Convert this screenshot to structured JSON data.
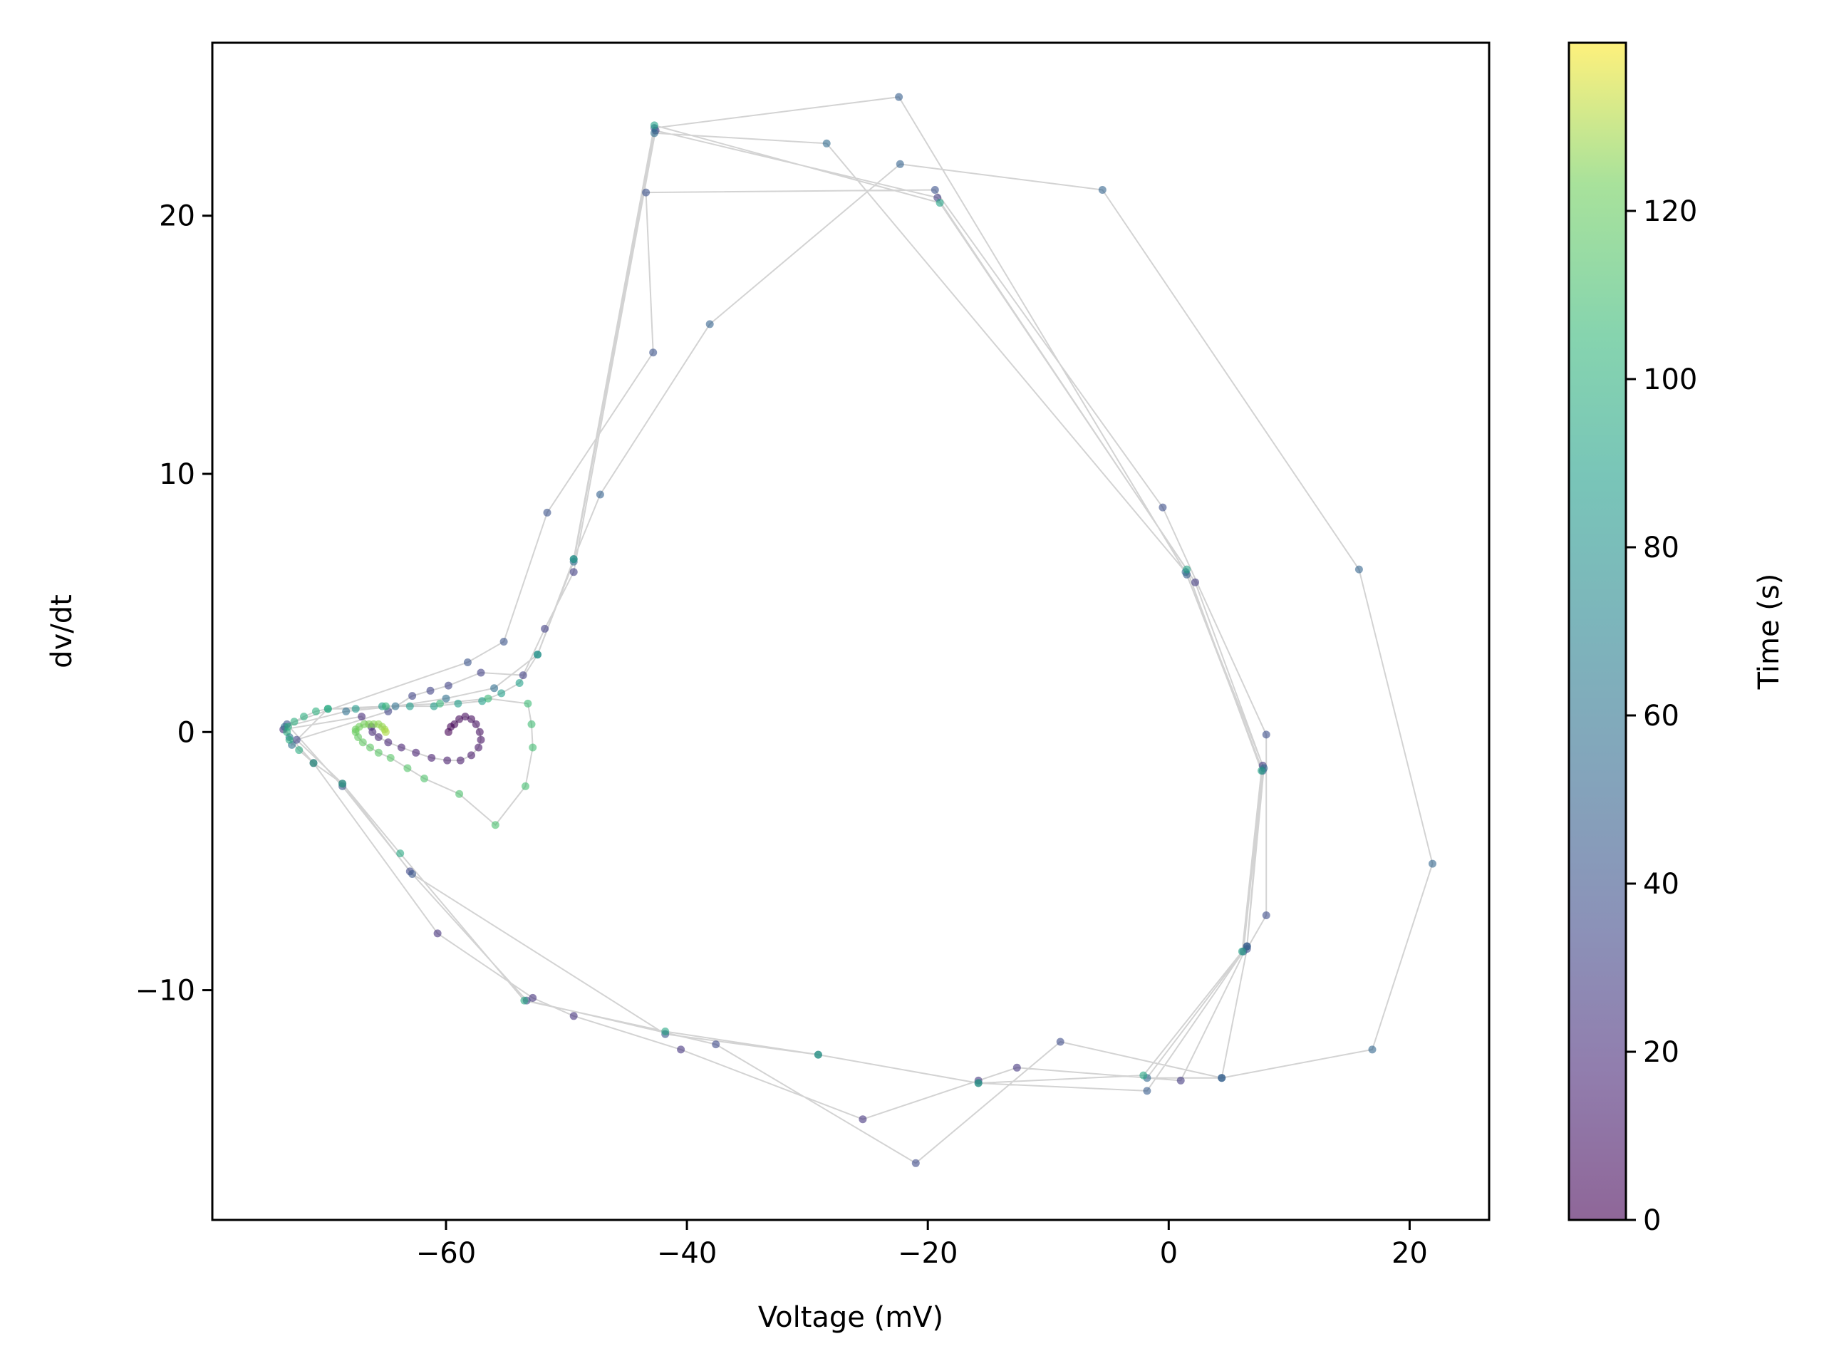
{
  "chart_data": {
    "type": "scatter",
    "title": "",
    "xlabel": "Voltage (mV)",
    "ylabel": "dv/dt",
    "xlim": [
      -79.4,
      26.6
    ],
    "ylim": [
      -18.9,
      26.7
    ],
    "xticks": [
      -60,
      -40,
      -20,
      0,
      20
    ],
    "yticks": [
      -10,
      0,
      10,
      20
    ],
    "grid": false,
    "connecting_line": true,
    "line_color": "#d3d3d3",
    "colormap": "viridis",
    "marker_alpha": 0.6,
    "colorbar": {
      "label": "Time (s)",
      "min": 0,
      "max": 140,
      "ticks": [
        0,
        20,
        40,
        60,
        80,
        100,
        120
      ]
    },
    "points": [
      {
        "x": -59.8,
        "y": 0.0,
        "t": 0
      },
      {
        "x": -59.6,
        "y": 0.2,
        "t": 1
      },
      {
        "x": -59.3,
        "y": 0.3,
        "t": 2
      },
      {
        "x": -58.9,
        "y": 0.5,
        "t": 3
      },
      {
        "x": -58.4,
        "y": 0.6,
        "t": 4
      },
      {
        "x": -57.9,
        "y": 0.5,
        "t": 5
      },
      {
        "x": -57.5,
        "y": 0.3,
        "t": 6
      },
      {
        "x": -57.2,
        "y": 0.0,
        "t": 7
      },
      {
        "x": -57.1,
        "y": -0.3,
        "t": 8
      },
      {
        "x": -57.3,
        "y": -0.6,
        "t": 9
      },
      {
        "x": -57.9,
        "y": -0.9,
        "t": 10
      },
      {
        "x": -58.8,
        "y": -1.1,
        "t": 11
      },
      {
        "x": -59.9,
        "y": -1.1,
        "t": 12
      },
      {
        "x": -61.2,
        "y": -1.0,
        "t": 13
      },
      {
        "x": -62.5,
        "y": -0.8,
        "t": 14
      },
      {
        "x": -63.7,
        "y": -0.6,
        "t": 15
      },
      {
        "x": -64.8,
        "y": -0.4,
        "t": 16
      },
      {
        "x": -65.6,
        "y": -0.2,
        "t": 17
      },
      {
        "x": -66.1,
        "y": 0.0,
        "t": 18
      },
      {
        "x": -66.2,
        "y": 0.2,
        "t": 19
      },
      {
        "x": -67.0,
        "y": 0.6,
        "t": 20
      },
      {
        "x": -73.5,
        "y": 0.1,
        "t": 20
      },
      {
        "x": -71.0,
        "y": -1.2,
        "t": 21
      },
      {
        "x": -60.7,
        "y": -7.8,
        "t": 22
      },
      {
        "x": -52.8,
        "y": -10.3,
        "t": 23
      },
      {
        "x": -49.4,
        "y": -11.0,
        "t": 23
      },
      {
        "x": -40.5,
        "y": -12.3,
        "t": 24
      },
      {
        "x": -25.4,
        "y": -15.0,
        "t": 24
      },
      {
        "x": -15.8,
        "y": -13.5,
        "t": 25
      },
      {
        "x": -12.6,
        "y": -13.0,
        "t": 25
      },
      {
        "x": 1.0,
        "y": -13.5,
        "t": 26
      },
      {
        "x": 6.5,
        "y": -8.3,
        "t": 26
      },
      {
        "x": 7.8,
        "y": -1.3,
        "t": 27
      },
      {
        "x": 2.2,
        "y": 5.8,
        "t": 27
      },
      {
        "x": -19.2,
        "y": 20.7,
        "t": 28
      },
      {
        "x": -42.6,
        "y": 23.3,
        "t": 28
      },
      {
        "x": -49.4,
        "y": 6.2,
        "t": 29
      },
      {
        "x": -51.8,
        "y": 4.0,
        "t": 29
      },
      {
        "x": -53.6,
        "y": 2.2,
        "t": 30
      },
      {
        "x": -57.1,
        "y": 2.3,
        "t": 30
      },
      {
        "x": -59.8,
        "y": 1.8,
        "t": 31
      },
      {
        "x": -61.3,
        "y": 1.6,
        "t": 31
      },
      {
        "x": -62.8,
        "y": 1.4,
        "t": 32
      },
      {
        "x": -64.8,
        "y": 0.8,
        "t": 32
      },
      {
        "x": -72.4,
        "y": -0.3,
        "t": 33
      },
      {
        "x": -68.6,
        "y": -2.0,
        "t": 33
      },
      {
        "x": -63.0,
        "y": -5.4,
        "t": 34
      },
      {
        "x": -53.3,
        "y": -10.4,
        "t": 34
      },
      {
        "x": -37.6,
        "y": -12.1,
        "t": 35
      },
      {
        "x": -21.0,
        "y": -16.7,
        "t": 35
      },
      {
        "x": -9.0,
        "y": -12.0,
        "t": 36
      },
      {
        "x": 4.4,
        "y": -13.4,
        "t": 36
      },
      {
        "x": 6.5,
        "y": -8.4,
        "t": 37
      },
      {
        "x": 8.1,
        "y": -7.1,
        "t": 37
      },
      {
        "x": 8.1,
        "y": -0.1,
        "t": 38
      },
      {
        "x": -0.5,
        "y": 8.7,
        "t": 38
      },
      {
        "x": -19.4,
        "y": 21.0,
        "t": 39
      },
      {
        "x": -43.4,
        "y": 20.9,
        "t": 39
      },
      {
        "x": -42.8,
        "y": 14.7,
        "t": 40
      },
      {
        "x": -51.6,
        "y": 8.5,
        "t": 40
      },
      {
        "x": -55.2,
        "y": 3.5,
        "t": 41
      },
      {
        "x": -58.2,
        "y": 2.7,
        "t": 41
      },
      {
        "x": -73.2,
        "y": 0.3,
        "t": 42
      },
      {
        "x": -68.6,
        "y": -2.1,
        "t": 42
      },
      {
        "x": -62.8,
        "y": -5.5,
        "t": 43
      },
      {
        "x": -41.8,
        "y": -11.7,
        "t": 43
      },
      {
        "x": -29.1,
        "y": -12.5,
        "t": 44
      },
      {
        "x": -15.8,
        "y": -13.6,
        "t": 44
      },
      {
        "x": -1.8,
        "y": -13.9,
        "t": 45
      },
      {
        "x": 6.2,
        "y": -8.5,
        "t": 45
      },
      {
        "x": 7.8,
        "y": -1.5,
        "t": 46
      },
      {
        "x": 1.5,
        "y": 6.1,
        "t": 46
      },
      {
        "x": -22.4,
        "y": 24.6,
        "t": 47
      },
      {
        "x": -42.7,
        "y": 23.4,
        "t": 47
      },
      {
        "x": -49.4,
        "y": 6.7,
        "t": 48
      },
      {
        "x": -47.2,
        "y": 9.2,
        "t": 48
      },
      {
        "x": -38.1,
        "y": 15.8,
        "t": 49
      },
      {
        "x": -22.3,
        "y": 22.0,
        "t": 49
      },
      {
        "x": -5.5,
        "y": 21.0,
        "t": 50
      },
      {
        "x": 15.8,
        "y": 6.3,
        "t": 50
      },
      {
        "x": 21.9,
        "y": -5.1,
        "t": 51
      },
      {
        "x": 16.9,
        "y": -12.3,
        "t": 51
      },
      {
        "x": 4.4,
        "y": -13.4,
        "t": 52
      },
      {
        "x": -1.8,
        "y": -13.4,
        "t": 52
      },
      {
        "x": 6.5,
        "y": -8.3,
        "t": 53
      },
      {
        "x": 7.9,
        "y": -1.4,
        "t": 53
      },
      {
        "x": 1.4,
        "y": 6.2,
        "t": 54
      },
      {
        "x": -28.4,
        "y": 22.8,
        "t": 54
      },
      {
        "x": -42.7,
        "y": 23.2,
        "t": 55
      },
      {
        "x": -49.4,
        "y": 6.6,
        "t": 55
      },
      {
        "x": -52.4,
        "y": 3.0,
        "t": 56
      },
      {
        "x": -56.0,
        "y": 1.7,
        "t": 56
      },
      {
        "x": -60.0,
        "y": 1.3,
        "t": 57
      },
      {
        "x": -64.2,
        "y": 1.0,
        "t": 57
      },
      {
        "x": -68.3,
        "y": 0.8,
        "t": 58
      },
      {
        "x": -73.4,
        "y": 0.2,
        "t": 58
      },
      {
        "x": -73.0,
        "y": -0.2,
        "t": 59
      },
      {
        "x": -72.8,
        "y": -0.5,
        "t": 59
      },
      {
        "x": -69.8,
        "y": 0.9,
        "t": 85
      },
      {
        "x": -67.5,
        "y": 0.9,
        "t": 85
      },
      {
        "x": -65.3,
        "y": 1.0,
        "t": 86
      },
      {
        "x": -63.0,
        "y": 1.0,
        "t": 86
      },
      {
        "x": -61.0,
        "y": 1.0,
        "t": 87
      },
      {
        "x": -59.0,
        "y": 1.1,
        "t": 87
      },
      {
        "x": -57.0,
        "y": 1.2,
        "t": 88
      },
      {
        "x": -55.4,
        "y": 1.5,
        "t": 88
      },
      {
        "x": -53.9,
        "y": 1.9,
        "t": 89
      },
      {
        "x": -52.4,
        "y": 3.0,
        "t": 89
      },
      {
        "x": -49.4,
        "y": 6.7,
        "t": 90
      },
      {
        "x": -42.7,
        "y": 23.5,
        "t": 90
      },
      {
        "x": -19.0,
        "y": 20.5,
        "t": 91
      },
      {
        "x": 1.5,
        "y": 6.3,
        "t": 91
      },
      {
        "x": 7.7,
        "y": -1.5,
        "t": 92
      },
      {
        "x": 6.1,
        "y": -8.5,
        "t": 92
      },
      {
        "x": -2.1,
        "y": -13.3,
        "t": 93
      },
      {
        "x": -15.8,
        "y": -13.6,
        "t": 93
      },
      {
        "x": -29.1,
        "y": -12.5,
        "t": 94
      },
      {
        "x": -41.8,
        "y": -11.6,
        "t": 94
      },
      {
        "x": -53.5,
        "y": -10.4,
        "t": 95
      },
      {
        "x": -63.8,
        "y": -4.7,
        "t": 95
      },
      {
        "x": -68.6,
        "y": -2.0,
        "t": 96
      },
      {
        "x": -71.0,
        "y": -1.2,
        "t": 96
      },
      {
        "x": -72.2,
        "y": -0.7,
        "t": 97
      },
      {
        "x": -73.0,
        "y": -0.3,
        "t": 97
      },
      {
        "x": -73.2,
        "y": 0.0,
        "t": 98
      },
      {
        "x": -73.1,
        "y": 0.2,
        "t": 98
      },
      {
        "x": -72.6,
        "y": 0.4,
        "t": 99
      },
      {
        "x": -71.8,
        "y": 0.6,
        "t": 99
      },
      {
        "x": -70.8,
        "y": 0.8,
        "t": 100
      },
      {
        "x": -69.8,
        "y": 0.9,
        "t": 100
      },
      {
        "x": -65.0,
        "y": 1.0,
        "t": 104
      },
      {
        "x": -60.5,
        "y": 1.1,
        "t": 105
      },
      {
        "x": -56.5,
        "y": 1.3,
        "t": 106
      },
      {
        "x": -53.2,
        "y": 1.1,
        "t": 107
      },
      {
        "x": -52.9,
        "y": 0.3,
        "t": 108
      },
      {
        "x": -52.8,
        "y": -0.6,
        "t": 109
      },
      {
        "x": -53.4,
        "y": -2.1,
        "t": 110
      },
      {
        "x": -55.9,
        "y": -3.6,
        "t": 111
      },
      {
        "x": -58.9,
        "y": -2.4,
        "t": 112
      },
      {
        "x": -61.8,
        "y": -1.8,
        "t": 113
      },
      {
        "x": -63.2,
        "y": -1.4,
        "t": 114
      },
      {
        "x": -64.6,
        "y": -1.0,
        "t": 115
      },
      {
        "x": -65.6,
        "y": -0.8,
        "t": 116
      },
      {
        "x": -66.3,
        "y": -0.6,
        "t": 117
      },
      {
        "x": -66.9,
        "y": -0.4,
        "t": 118
      },
      {
        "x": -67.3,
        "y": -0.2,
        "t": 119
      },
      {
        "x": -67.5,
        "y": 0.0,
        "t": 120
      },
      {
        "x": -67.5,
        "y": 0.1,
        "t": 121
      },
      {
        "x": -67.2,
        "y": 0.2,
        "t": 122
      },
      {
        "x": -66.8,
        "y": 0.3,
        "t": 123
      },
      {
        "x": -66.4,
        "y": 0.3,
        "t": 124
      },
      {
        "x": -66.0,
        "y": 0.3,
        "t": 125
      },
      {
        "x": -65.6,
        "y": 0.3,
        "t": 126
      },
      {
        "x": -65.3,
        "y": 0.2,
        "t": 127
      },
      {
        "x": -65.1,
        "y": 0.1,
        "t": 128
      },
      {
        "x": -65.0,
        "y": 0.0,
        "t": 130
      }
    ]
  }
}
